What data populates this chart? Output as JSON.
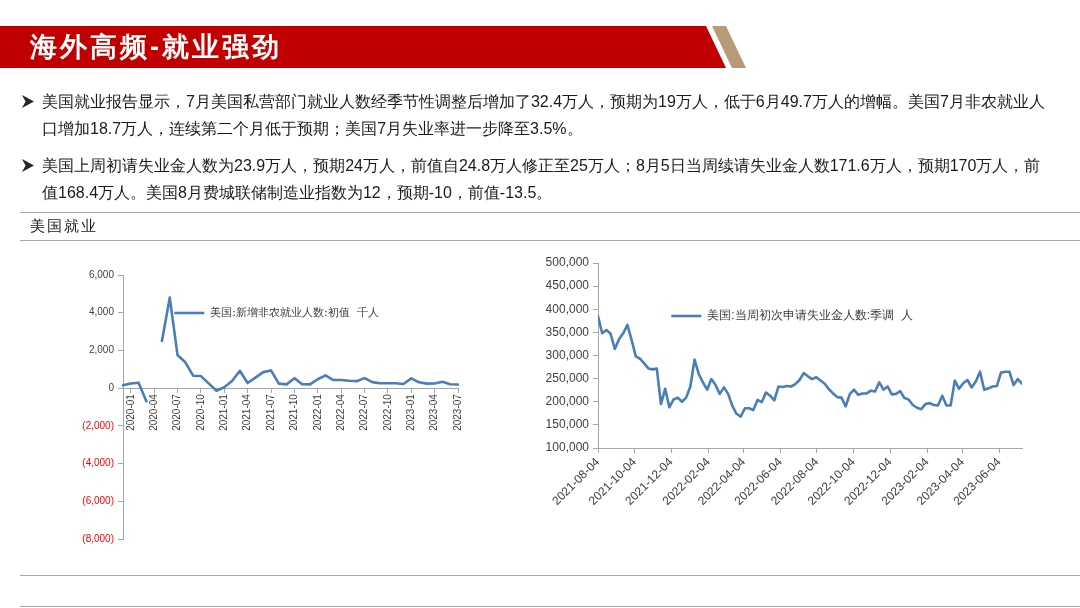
{
  "chart_data": [
    {
      "type": "other",
      "title": "海外高频-就业强劲",
      "subtitle": "美国就业",
      "annotations": [
        "美国就业报告显示，7月美国私营部门就业人数经季节性调整后增加了32.4万人，预期为19万人，低于6月49.7万人的增幅。美国7月非农就业人口增加18.7万人，连续第二个月低于预期；美国7月失业率进一步降至3.5%。",
        "美国上周初请失业金人数为23.9万人，预期24万人，前值自24.8万人修正至25万人；8月5日当周续请失业金人数171.6万人，预期170万人，前值168.4万人。美国8月费城联储制造业指数为12，预期-10，前值-13.5。"
      ]
    },
    {
      "type": "line",
      "categories": [
        null,
        "2020-01",
        null,
        null,
        "2020-04",
        null,
        null,
        "2020-07",
        null,
        null,
        "2020-10",
        null,
        null,
        "2021-01",
        null,
        null,
        "2021-04",
        null,
        null,
        "2021-07",
        null,
        null,
        "2021-10",
        null,
        null,
        "2022-01",
        null,
        null,
        "2022-04",
        null,
        null,
        "2022-07",
        null,
        null,
        "2022-10",
        null,
        null,
        "2023-01",
        null,
        null,
        "2023-04",
        null,
        null,
        "2023-07"
      ],
      "series": [
        {
          "name": "美国:新增非农就业人数:初值  千人",
          "color": "#4a7ebb",
          "values": [
            150,
            250,
            290,
            -700,
            null,
            2500,
            4800,
            1760,
            1370,
            660,
            640,
            250,
            -140,
            50,
            380,
            920,
            270,
            560,
            850,
            940,
            240,
            200,
            530,
            210,
            200,
            470,
            680,
            430,
            430,
            390,
            370,
            530,
            320,
            260,
            260,
            260,
            220,
            520,
            310,
            240,
            250,
            340,
            210,
            190
          ]
        }
      ],
      "ylim": [
        -8000,
        6000
      ],
      "yticks": [
        {
          "value": -8000,
          "label": "(8,000)"
        },
        {
          "value": -6000,
          "label": "(6,000)"
        },
        {
          "value": -4000,
          "label": "(4,000)"
        },
        {
          "value": -2000,
          "label": "(2,000)"
        },
        0,
        {
          "value": 2000,
          "label": "2,000"
        },
        {
          "value": 4000,
          "label": "4,000"
        },
        {
          "value": 6000,
          "label": "6,000"
        }
      ],
      "legend": "top",
      "marker": "none",
      "grid": false
    },
    {
      "type": "line",
      "x": [
        "2021-08-04",
        "2021-08-11",
        "2021-08-18",
        "2021-08-25",
        "2021-09-01",
        "2021-09-08",
        "2021-09-15",
        "2021-09-22",
        "2021-09-29",
        "2021-10-06",
        "2021-10-13",
        "2021-10-20",
        "2021-10-27",
        "2021-11-03",
        "2021-11-10",
        "2021-11-17",
        "2021-11-24",
        "2021-12-01",
        "2021-12-08",
        "2021-12-15",
        "2021-12-22",
        "2021-12-29",
        "2022-01-05",
        "2022-01-12",
        "2022-01-19",
        "2022-01-26",
        "2022-02-02",
        "2022-02-09",
        "2022-02-16",
        "2022-02-23",
        "2022-03-02",
        "2022-03-09",
        "2022-03-16",
        "2022-03-23",
        "2022-03-30",
        "2022-04-06",
        "2022-04-13",
        "2022-04-20",
        "2022-04-27",
        "2022-05-04",
        "2022-05-11",
        "2022-05-18",
        "2022-05-25",
        "2022-06-01",
        "2022-06-08",
        "2022-06-15",
        "2022-06-22",
        "2022-06-29",
        "2022-07-06",
        "2022-07-13",
        "2022-07-20",
        "2022-07-27",
        "2022-08-03",
        "2022-08-10",
        "2022-08-17",
        "2022-08-24",
        "2022-08-31",
        "2022-09-07",
        "2022-09-14",
        "2022-09-21",
        "2022-09-28",
        "2022-10-05",
        "2022-10-12",
        "2022-10-19",
        "2022-10-26",
        "2022-11-02",
        "2022-11-09",
        "2022-11-16",
        "2022-11-23",
        "2022-11-30",
        "2022-12-07",
        "2022-12-14",
        "2022-12-21",
        "2022-12-28",
        "2023-01-04",
        "2023-01-11",
        "2023-01-18",
        "2023-01-25",
        "2023-02-01",
        "2023-02-08",
        "2023-02-15",
        "2023-02-22",
        "2023-03-01",
        "2023-03-08",
        "2023-03-15",
        "2023-03-22",
        "2023-03-29",
        "2023-04-05",
        "2023-04-12",
        "2023-04-19",
        "2023-04-26",
        "2023-05-03",
        "2023-05-10",
        "2023-05-17",
        "2023-05-24",
        "2023-05-31",
        "2023-06-07",
        "2023-06-14",
        "2023-06-21",
        "2023-06-28",
        "2023-07-05",
        "2023-07-12"
      ],
      "series": [
        {
          "name": "美国:当周初次申请失业金人数:季调  人",
          "color": "#4a7ebb",
          "values": [
            385000,
            348000,
            355000,
            347000,
            314000,
            335000,
            348000,
            366000,
            334000,
            298000,
            293000,
            283000,
            272000,
            270000,
            272000,
            195000,
            228000,
            188000,
            205000,
            209000,
            200000,
            209000,
            233000,
            291000,
            260000,
            242000,
            226000,
            249000,
            236000,
            217000,
            231000,
            217000,
            191000,
            174000,
            168000,
            186000,
            186000,
            182000,
            204000,
            199000,
            220000,
            213000,
            203000,
            233000,
            232000,
            234000,
            233000,
            238000,
            247000,
            262000,
            255000,
            249000,
            253000,
            246000,
            239000,
            227000,
            218000,
            210000,
            209000,
            190000,
            217000,
            226000,
            215000,
            218000,
            218000,
            224000,
            222000,
            242000,
            226000,
            233000,
            216000,
            217000,
            223000,
            208000,
            205000,
            193000,
            187000,
            184000,
            195000,
            197000,
            193000,
            192000,
            213000,
            192000,
            192000,
            246000,
            228000,
            240000,
            247000,
            231000,
            244000,
            265000,
            226000,
            229000,
            233000,
            234000,
            263000,
            265000,
            265000,
            236000,
            249000,
            239000
          ]
        }
      ],
      "xlim": [
        "2021-08-04",
        "2023-07-12"
      ],
      "xticks": [
        "2021-08-04",
        "2021-10-04",
        "2021-12-04",
        "2022-02-04",
        "2022-04-04",
        "2022-06-04",
        "2022-08-04",
        "2022-10-04",
        "2022-12-04",
        "2023-02-04",
        "2023-04-04",
        "2023-06-04"
      ],
      "ylim": [
        100000,
        500000
      ],
      "yticks": [
        {
          "value": 100000,
          "label": "100,000"
        },
        {
          "value": 150000,
          "label": "150,000"
        },
        {
          "value": 200000,
          "label": "200,000"
        },
        {
          "value": 250000,
          "label": "250,000"
        },
        {
          "value": 300000,
          "label": "300,000"
        },
        {
          "value": 350000,
          "label": "350,000"
        },
        {
          "value": 400000,
          "label": "400,000"
        },
        {
          "value": 450000,
          "label": "450,000"
        },
        {
          "value": 500000,
          "label": "500,000"
        }
      ],
      "legend": "top",
      "marker": "none",
      "grid": false
    }
  ]
}
